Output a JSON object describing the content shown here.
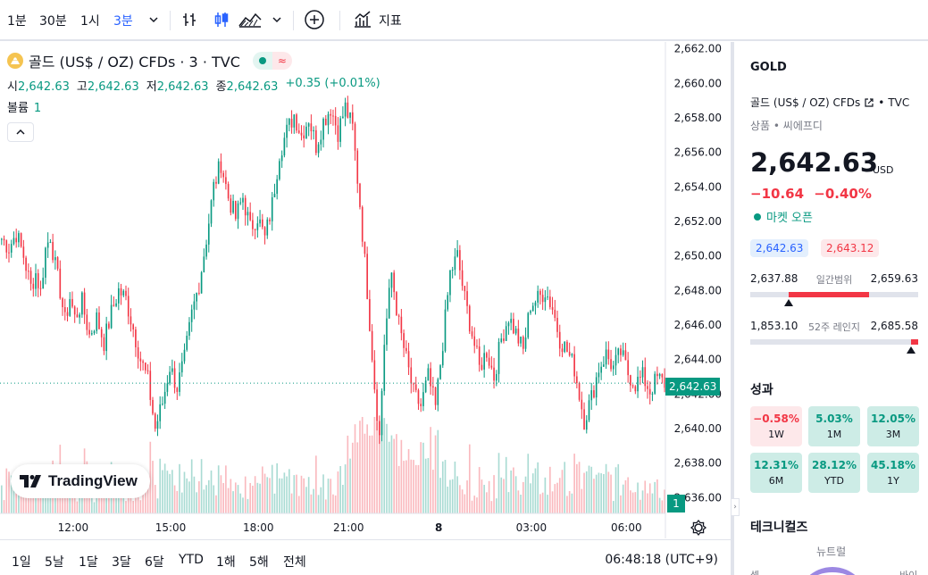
{
  "toolbar": {
    "intervals": [
      "1분",
      "30분",
      "1시",
      "3분"
    ],
    "active_interval": "3분",
    "indicators_label": "지표"
  },
  "legend": {
    "symbol_title": "골드 (US$ / OZ) CFDs · 3 · TVC",
    "open_label": "시",
    "open": "2,642.63",
    "high_label": "고",
    "high": "2,642.63",
    "low_label": "저",
    "low": "2,642.63",
    "close_label": "종",
    "close": "2,642.63",
    "change": "+0.35 (+0.01%)",
    "volume_label": "볼륨",
    "volume": "1"
  },
  "watermark": {
    "text": "TradingView"
  },
  "price_axis": {
    "ticks": [
      "2,662.00",
      "2,660.00",
      "2,658.00",
      "2,656.00",
      "2,654.00",
      "2,652.00",
      "2,650.00",
      "2,648.00",
      "2,646.00",
      "2,644.00",
      "2,642.00",
      "2,640.00",
      "2,638.00",
      "2,636.00"
    ],
    "last_price_tag": "2,642.63",
    "volume_tag": "1"
  },
  "time_axis": {
    "ticks": [
      "12:00",
      "15:00",
      "18:00",
      "21:00",
      "8",
      "03:00",
      "06:00"
    ]
  },
  "bottom_bar": {
    "ranges": [
      "1일",
      "5날",
      "1달",
      "3달",
      "6달",
      "YTD",
      "1해",
      "5해",
      "전체"
    ],
    "clock": "06:48:18 (UTC+9)"
  },
  "chart_data": {
    "type": "candlestick",
    "title": "골드 (US$ / OZ) CFDs · 3 · TVC",
    "interval": "3분",
    "x_ticks": [
      "12:00",
      "15:00",
      "18:00",
      "21:00",
      "8",
      "03:00",
      "06:00"
    ],
    "ylim": [
      2635.5,
      2662.5
    ],
    "last_price": 2642.63,
    "up_color": "#089981",
    "down_color": "#f23645",
    "close_path": [
      [
        0,
        2651.0
      ],
      [
        3,
        2650.5
      ],
      [
        6,
        2651.3
      ],
      [
        9,
        2650.0
      ],
      [
        12,
        2648.2
      ],
      [
        14,
        2649.0
      ],
      [
        16,
        2647.9
      ],
      [
        18,
        2650.4
      ],
      [
        20,
        2651.2
      ],
      [
        22,
        2649.4
      ],
      [
        24,
        2648.0
      ],
      [
        26,
        2646.2
      ],
      [
        28,
        2647.6
      ],
      [
        30,
        2646.4
      ],
      [
        33,
        2647.3
      ],
      [
        36,
        2645.4
      ],
      [
        39,
        2646.4
      ],
      [
        42,
        2645.0
      ],
      [
        45,
        2646.7
      ],
      [
        48,
        2648.0
      ],
      [
        51,
        2647.5
      ],
      [
        54,
        2645.8
      ],
      [
        57,
        2644.0
      ],
      [
        60,
        2642.8
      ],
      [
        63,
        2640.0
      ],
      [
        66,
        2641.5
      ],
      [
        69,
        2643.6
      ],
      [
        72,
        2642.4
      ],
      [
        75,
        2644.0
      ],
      [
        78,
        2646.6
      ],
      [
        81,
        2648.4
      ],
      [
        84,
        2651.0
      ],
      [
        87,
        2654.0
      ],
      [
        90,
        2655.4
      ],
      [
        93,
        2653.4
      ],
      [
        96,
        2652.2
      ],
      [
        99,
        2653.4
      ],
      [
        102,
        2651.6
      ],
      [
        105,
        2652.3
      ],
      [
        108,
        2651.0
      ],
      [
        111,
        2653.0
      ],
      [
        114,
        2656.0
      ],
      [
        117,
        2657.2
      ],
      [
        120,
        2658.2
      ],
      [
        123,
        2657.0
      ],
      [
        126,
        2658.0
      ],
      [
        129,
        2656.4
      ],
      [
        132,
        2657.8
      ],
      [
        135,
        2658.6
      ],
      [
        138,
        2657.2
      ],
      [
        141,
        2658.6
      ],
      [
        144,
        2657.4
      ],
      [
        147,
        2653.0
      ],
      [
        150,
        2648.0
      ],
      [
        153,
        2642.5
      ],
      [
        155,
        2639.5
      ],
      [
        157,
        2645.0
      ],
      [
        160,
        2649.0
      ],
      [
        163,
        2646.0
      ],
      [
        166,
        2644.0
      ],
      [
        169,
        2642.0
      ],
      [
        172,
        2641.3
      ],
      [
        175,
        2643.0
      ],
      [
        178,
        2641.2
      ],
      [
        181,
        2645.0
      ],
      [
        184,
        2649.0
      ],
      [
        187,
        2650.0
      ],
      [
        190,
        2647.5
      ],
      [
        193,
        2645.5
      ],
      [
        196,
        2643.5
      ],
      [
        199,
        2644.5
      ],
      [
        202,
        2643.0
      ],
      [
        205,
        2645.2
      ],
      [
        208,
        2646.5
      ],
      [
        211,
        2645.5
      ],
      [
        214,
        2644.5
      ],
      [
        217,
        2647.2
      ],
      [
        220,
        2647.5
      ],
      [
        223,
        2648.0
      ],
      [
        226,
        2647.0
      ],
      [
        229,
        2645.2
      ],
      [
        232,
        2644.5
      ],
      [
        235,
        2643.5
      ],
      [
        237,
        2642.0
      ],
      [
        239,
        2640.5
      ],
      [
        242,
        2641.8
      ],
      [
        245,
        2643.5
      ],
      [
        248,
        2644.3
      ],
      [
        251,
        2643.5
      ],
      [
        254,
        2644.4
      ],
      [
        257,
        2643.2
      ],
      [
        260,
        2642.6
      ],
      [
        263,
        2643.0
      ],
      [
        266,
        2642.2
      ],
      [
        269,
        2642.9
      ],
      [
        272,
        2642.63
      ]
    ],
    "volume_range": [
      0,
      40
    ]
  },
  "right_panel": {
    "symbol": "GOLD",
    "name": "골드 (US$ / OZ) CFDs",
    "exchange": "TVC",
    "category": "상품 • 씨에프디",
    "price": "2,642.63",
    "currency": "USD",
    "change": "−10.64",
    "change_pct": "−0.40%",
    "market_status": "마켓 오픈",
    "bid": "2,642.63",
    "ask": "2,643.12",
    "day_range": {
      "low": "2,637.88",
      "label": "일간범위",
      "high": "2,659.63",
      "fill_start": 0.23,
      "fill_end": 0.71,
      "marker": 0.23
    },
    "week52_range": {
      "low": "1,853.10",
      "label": "52주 레인지",
      "high": "2,685.58",
      "fill_start": 0.96,
      "fill_end": 1.0,
      "marker": 0.96
    },
    "performance_title": "성과",
    "performance": [
      {
        "value": "−0.58%",
        "label": "1W",
        "sign": "neg"
      },
      {
        "value": "5.03%",
        "label": "1M",
        "sign": "pos"
      },
      {
        "value": "12.05%",
        "label": "3M",
        "sign": "pos"
      },
      {
        "value": "12.31%",
        "label": "6M",
        "sign": "pos"
      },
      {
        "value": "28.12%",
        "label": "YTD",
        "sign": "pos"
      },
      {
        "value": "45.18%",
        "label": "1Y",
        "sign": "pos"
      }
    ],
    "technicals_title": "테크니컬즈",
    "technicals_rating": "뉴트럴",
    "gauge_left": "셀",
    "gauge_right": "바이"
  }
}
